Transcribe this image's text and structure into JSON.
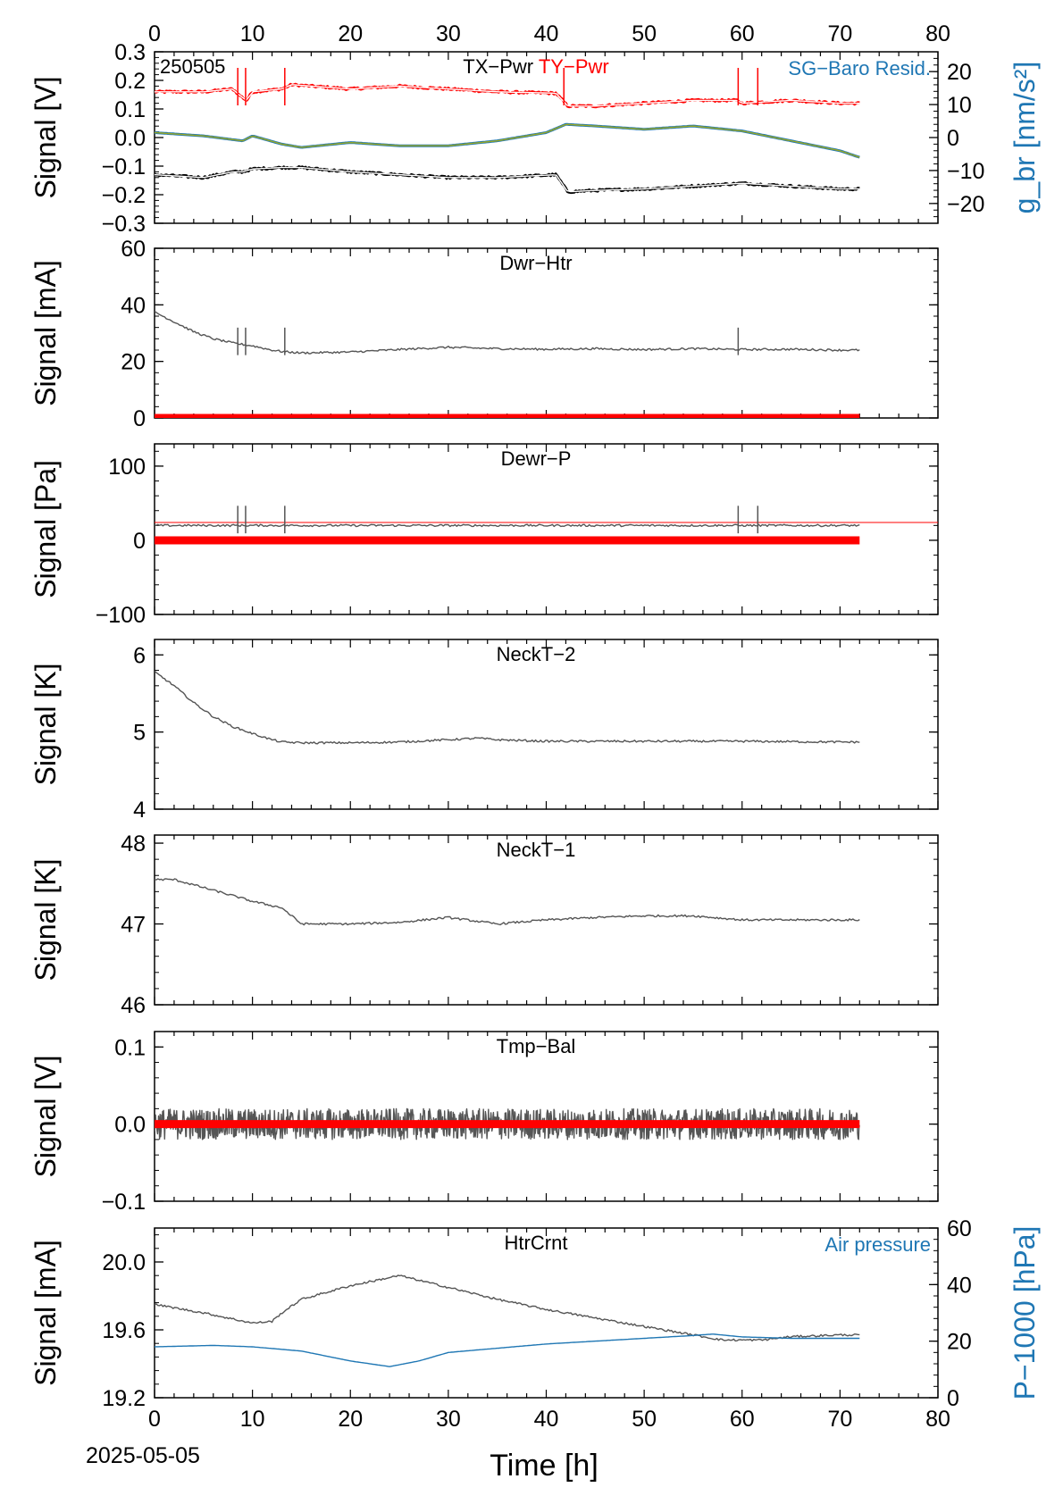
{
  "figure": {
    "date_label": "2025-05-05",
    "xlabel": "Time [h]",
    "xlim": [
      0,
      80
    ],
    "x_ticks": [
      0,
      10,
      20,
      30,
      40,
      50,
      60,
      70,
      80
    ],
    "x_data_end": 72
  },
  "chart_data": [
    {
      "type": "line",
      "id": "p1",
      "tag": "250505",
      "titles": [
        {
          "text": "TX−Pwr",
          "color": "#000000"
        },
        {
          "text": "TY−Pwr",
          "color": "#ff0000"
        }
      ],
      "right_legend": {
        "text": "SG−Baro Resid.",
        "color": "#1f77b4"
      },
      "ylabel": "Signal [V]",
      "ylim": [
        -0.3,
        0.3
      ],
      "y_ticks": [
        -0.3,
        -0.2,
        -0.1,
        0.0,
        0.1,
        0.2,
        0.3
      ],
      "y_tick_labels": [
        "−0.3",
        "−0.2",
        "−0.1",
        "0.0",
        "0.1",
        "0.2",
        "0.3"
      ],
      "y2label": "g_br [nm/s²]",
      "y2lim": [
        -26,
        26
      ],
      "y2_ticks": [
        -20,
        -10,
        0,
        10,
        20
      ],
      "y2_tick_labels": [
        "−20",
        "−10",
        "0",
        "10",
        "20"
      ],
      "series": [
        {
          "name": "TY−Pwr",
          "color": "#ff0000",
          "x": [
            0,
            5,
            8,
            8.6,
            9.4,
            10,
            13,
            14,
            20,
            25,
            30,
            35,
            41,
            42.2,
            45,
            50,
            55,
            59.5,
            60,
            65,
            70,
            72
          ],
          "y": [
            0.16,
            0.16,
            0.17,
            0.15,
            0.13,
            0.16,
            0.17,
            0.185,
            0.17,
            0.18,
            0.17,
            0.16,
            0.155,
            0.11,
            0.11,
            0.12,
            0.13,
            0.13,
            0.12,
            0.13,
            0.12,
            0.12
          ]
        },
        {
          "name": "TX−Pwr",
          "color": "#000000",
          "x": [
            0,
            5,
            8,
            9,
            10,
            13,
            15,
            20,
            25,
            30,
            35,
            41,
            42.2,
            45,
            50,
            55,
            60,
            65,
            70,
            72
          ],
          "y": [
            -0.13,
            -0.14,
            -0.12,
            -0.12,
            -0.11,
            -0.105,
            -0.105,
            -0.12,
            -0.13,
            -0.14,
            -0.14,
            -0.13,
            -0.19,
            -0.185,
            -0.18,
            -0.17,
            -0.16,
            -0.17,
            -0.18,
            -0.18
          ]
        },
        {
          "name": "SG−Baro Resid.",
          "color": "#1f77b4",
          "axis": "y2",
          "x": [
            0,
            5,
            9,
            10,
            13,
            15,
            20,
            25,
            30,
            35,
            40,
            42,
            45,
            50,
            55,
            60,
            65,
            70,
            72
          ],
          "y": [
            1.5,
            0.5,
            -1,
            0.5,
            -2,
            -3,
            -1.5,
            -2.5,
            -2.5,
            -1,
            1.5,
            4,
            3.5,
            2.5,
            3.5,
            2,
            -1,
            -4,
            -6
          ]
        }
      ]
    },
    {
      "type": "line",
      "id": "p2",
      "titles": [
        {
          "text": "Dwr−Htr",
          "color": "#000000"
        }
      ],
      "ylabel": "Signal [mA]",
      "ylim": [
        0,
        60
      ],
      "y_ticks": [
        0,
        20,
        40,
        60
      ],
      "y_tick_labels": [
        "0",
        "20",
        "40",
        "60"
      ],
      "series": [
        {
          "color": "#555555",
          "x": [
            0,
            2,
            4,
            6,
            8,
            10,
            12,
            13,
            15,
            20,
            25,
            30,
            35,
            40,
            45,
            50,
            55,
            60,
            65,
            70,
            72
          ],
          "y": [
            37.5,
            34,
            30.5,
            28,
            26.5,
            25.5,
            24,
            23.5,
            23,
            23.3,
            24.2,
            25,
            24.5,
            24.3,
            24.5,
            24.2,
            24.5,
            24.2,
            24.3,
            24,
            24
          ]
        },
        {
          "color": "#ff0000",
          "x": [
            0,
            72
          ],
          "y": [
            0,
            0
          ]
        }
      ]
    },
    {
      "type": "line",
      "id": "p3",
      "titles": [
        {
          "text": "Dewr−P",
          "color": "#000000"
        }
      ],
      "ylabel": "Signal [Pa]",
      "ylim": [
        -100,
        130
      ],
      "y_ticks": [
        -100,
        0,
        100
      ],
      "y_tick_labels": [
        "−100",
        "0",
        "100"
      ],
      "series": [
        {
          "color": "#555555",
          "x": [
            0,
            72
          ],
          "y": [
            20,
            20
          ]
        },
        {
          "color": "#ff0000",
          "x": [
            0,
            80
          ],
          "y": [
            24,
            24
          ]
        },
        {
          "color": "#ff0000",
          "x": [
            0,
            72
          ],
          "y": [
            0,
            0
          ]
        }
      ]
    },
    {
      "type": "line",
      "id": "p4",
      "titles": [
        {
          "text": "NeckT−2",
          "color": "#000000"
        }
      ],
      "ylabel": "Signal [K]",
      "ylim": [
        4,
        6.2
      ],
      "y_ticks": [
        4,
        5,
        6
      ],
      "y_tick_labels": [
        "4",
        "5",
        "6"
      ],
      "series": [
        {
          "color": "#555555",
          "x": [
            0,
            2,
            4,
            6,
            8,
            10,
            12,
            13,
            15,
            20,
            25,
            30,
            33,
            35,
            40,
            50,
            60,
            70,
            72
          ],
          "y": [
            5.78,
            5.6,
            5.38,
            5.2,
            5.07,
            4.98,
            4.9,
            4.87,
            4.86,
            4.86,
            4.87,
            4.9,
            4.92,
            4.9,
            4.88,
            4.88,
            4.88,
            4.87,
            4.87
          ]
        }
      ]
    },
    {
      "type": "line",
      "id": "p5",
      "titles": [
        {
          "text": "NeckT−1",
          "color": "#000000"
        }
      ],
      "ylabel": "Signal [K]",
      "ylim": [
        46,
        48.1
      ],
      "y_ticks": [
        46,
        47,
        48
      ],
      "y_tick_labels": [
        "46",
        "47",
        "48"
      ],
      "series": [
        {
          "color": "#555555",
          "x": [
            0,
            2,
            5,
            8,
            10,
            13,
            15,
            20,
            25,
            30,
            35,
            40,
            45,
            50,
            55,
            60,
            65,
            70,
            72
          ],
          "y": [
            47.55,
            47.55,
            47.45,
            47.35,
            47.28,
            47.2,
            47.0,
            47.0,
            47.02,
            47.08,
            47.0,
            47.05,
            47.08,
            47.1,
            47.1,
            47.05,
            47.05,
            47.05,
            47.05
          ]
        }
      ]
    },
    {
      "type": "line",
      "id": "p6",
      "titles": [
        {
          "text": "Tmp−Bal",
          "color": "#000000"
        }
      ],
      "ylabel": "Signal [V]",
      "ylim": [
        -0.1,
        0.12
      ],
      "y_ticks": [
        -0.1,
        0.0,
        0.1
      ],
      "y_tick_labels": [
        "−0.1",
        "0.0",
        "0.1"
      ],
      "noise_amplitude": 0.02,
      "series": [
        {
          "color": "#555555",
          "x": [
            0,
            72
          ],
          "y": [
            0,
            0
          ]
        },
        {
          "color": "#ff0000",
          "x": [
            0,
            72
          ],
          "y": [
            0,
            0
          ]
        }
      ]
    },
    {
      "type": "line",
      "id": "p7",
      "titles": [
        {
          "text": "HtrCrnt",
          "color": "#000000"
        }
      ],
      "right_legend": {
        "text": "Air pressure",
        "color": "#1f77b4"
      },
      "ylabel": "Signal [mA]",
      "ylim": [
        19.2,
        20.2
      ],
      "y_ticks": [
        19.2,
        19.6,
        20.0
      ],
      "y_tick_labels": [
        "19.2",
        "19.6",
        "20.0"
      ],
      "y2label": "P−1000 [hPa]",
      "y2lim": [
        0,
        60
      ],
      "y2_ticks": [
        0,
        20,
        40,
        60
      ],
      "y2_tick_labels": [
        "0",
        "20",
        "40",
        "60"
      ],
      "series": [
        {
          "color": "#555555",
          "x": [
            0,
            5,
            10,
            12,
            13,
            15,
            20,
            25,
            30,
            35,
            40,
            45,
            50,
            55,
            58,
            62,
            65,
            70,
            72
          ],
          "y": [
            19.75,
            19.7,
            19.64,
            19.65,
            19.7,
            19.78,
            19.86,
            19.92,
            19.85,
            19.78,
            19.72,
            19.67,
            19.62,
            19.57,
            19.54,
            19.54,
            19.56,
            19.57,
            19.57
          ]
        },
        {
          "color": "#1f77b4",
          "axis": "y2",
          "x": [
            0,
            6,
            10,
            15,
            20,
            24,
            27,
            30,
            35,
            40,
            45,
            50,
            55,
            57,
            60,
            65,
            70,
            72
          ],
          "y": [
            18,
            18.5,
            18,
            16.5,
            13,
            11,
            13,
            16,
            17.5,
            19,
            20,
            21,
            22,
            22.5,
            21.5,
            21,
            21,
            21
          ]
        }
      ]
    }
  ]
}
